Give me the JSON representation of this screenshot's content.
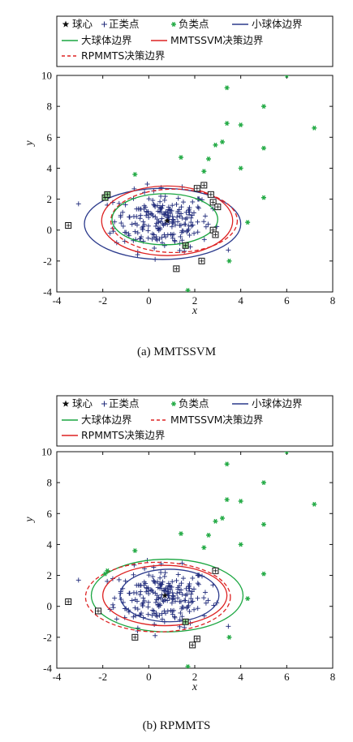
{
  "chart_data": [
    {
      "type": "scatter",
      "caption": "(a) MMTSSVM",
      "xlabel": "x",
      "ylabel": "y",
      "xlim": [
        -4,
        8
      ],
      "ylim": [
        -4,
        10
      ],
      "xticks": [
        "-4",
        "-2",
        "0",
        "2",
        "4",
        "6",
        "8"
      ],
      "yticks": [
        "-4",
        "-2",
        "0",
        "2",
        "4",
        "6",
        "8",
        "10"
      ],
      "legend": [
        {
          "label": "球心",
          "symbol": "star",
          "color": "#111111"
        },
        {
          "label": "正类点",
          "symbol": "plus",
          "color": "#1f2a7a"
        },
        {
          "label": "负类点",
          "symbol": "asterisk",
          "color": "#22aa44"
        },
        {
          "label": "小球体边界",
          "symbol": "solid",
          "color": "#2b3a8c"
        },
        {
          "label": "大球体边界",
          "symbol": "solid",
          "color": "#1aa640"
        },
        {
          "label": "MMTSSVM决策边界",
          "symbol": "solid",
          "color": "#dd2222"
        },
        {
          "label": "RPMMTS决策边界",
          "symbol": "dashed",
          "color": "#dd2222"
        }
      ],
      "boundaries": [
        {
          "name": "小球体边界",
          "cx": 0.6,
          "cy": 0.4,
          "rx": 3.4,
          "ry": 2.3,
          "color": "#2b3a8c",
          "dash": false
        },
        {
          "name": "MMTSSVM决策边界",
          "cx": 0.8,
          "cy": 0.6,
          "rx": 2.85,
          "ry": 2.25,
          "color": "#dd2222",
          "dash": false
        },
        {
          "name": "RPMMTS决策边界",
          "cx": 1.1,
          "cy": 0.6,
          "rx": 2.75,
          "ry": 2.05,
          "color": "#dd2222",
          "dash": true
        },
        {
          "name": "大球体边界",
          "cx": 0.7,
          "cy": 0.7,
          "rx": 2.3,
          "ry": 1.65,
          "color": "#1aa640",
          "dash": false
        }
      ],
      "center": [
        0.8,
        0.6
      ],
      "negative_points": [
        [
          6.0,
          10.0
        ],
        [
          3.4,
          9.2
        ],
        [
          5.0,
          8.0
        ],
        [
          3.4,
          6.9
        ],
        [
          4.0,
          6.8
        ],
        [
          7.2,
          6.6
        ],
        [
          2.9,
          5.5
        ],
        [
          3.2,
          5.7
        ],
        [
          2.6,
          4.6
        ],
        [
          1.4,
          4.7
        ],
        [
          5.0,
          5.3
        ],
        [
          4.0,
          4.0
        ],
        [
          2.4,
          3.8
        ],
        [
          -0.6,
          3.6
        ],
        [
          5.0,
          2.1
        ],
        [
          4.3,
          0.5
        ],
        [
          3.5,
          -2.0
        ],
        [
          1.7,
          -3.9
        ],
        [
          -1.8,
          2.3
        ],
        [
          -1.9,
          2.1
        ]
      ],
      "support_points": [
        [
          -3.5,
          0.3
        ],
        [
          -1.9,
          2.1
        ],
        [
          -1.8,
          2.3
        ],
        [
          2.1,
          2.7
        ],
        [
          2.4,
          2.9
        ],
        [
          2.7,
          2.3
        ],
        [
          2.8,
          1.8
        ],
        [
          3.0,
          1.5
        ],
        [
          2.8,
          0.0
        ],
        [
          2.9,
          -0.3
        ],
        [
          2.3,
          -2.0
        ],
        [
          1.6,
          -1.0
        ],
        [
          1.2,
          -2.5
        ]
      ],
      "support_filled": [
        false,
        true,
        true,
        false,
        false,
        false,
        false,
        false,
        false,
        false,
        false,
        true,
        false
      ]
    },
    {
      "type": "scatter",
      "caption": "(b) RPMMTS",
      "xlabel": "x",
      "ylabel": "y",
      "xlim": [
        -4,
        8
      ],
      "ylim": [
        -4,
        10
      ],
      "xticks": [
        "-4",
        "-2",
        "0",
        "2",
        "4",
        "6",
        "8"
      ],
      "yticks": [
        "-4",
        "-2",
        "0",
        "2",
        "4",
        "6",
        "8",
        "10"
      ],
      "legend": [
        {
          "label": "球心",
          "symbol": "star",
          "color": "#111111"
        },
        {
          "label": "正类点",
          "symbol": "plus",
          "color": "#1f2a7a"
        },
        {
          "label": "负类点",
          "symbol": "asterisk",
          "color": "#22aa44"
        },
        {
          "label": "小球体边界",
          "symbol": "solid",
          "color": "#2b3a8c"
        },
        {
          "label": "大球体边界",
          "symbol": "solid",
          "color": "#1aa640"
        },
        {
          "label": "MMTSSVM决策边界",
          "symbol": "dashed",
          "color": "#dd2222"
        },
        {
          "label": "RPMMTS决策边界",
          "symbol": "solid",
          "color": "#dd2222"
        }
      ],
      "boundaries": [
        {
          "name": "大球体边界",
          "cx": 0.8,
          "cy": 0.7,
          "rx": 3.3,
          "ry": 2.35,
          "color": "#1aa640",
          "dash": false
        },
        {
          "name": "MMTSSVM决策边界",
          "cx": 0.4,
          "cy": 0.6,
          "rx": 3.15,
          "ry": 2.25,
          "color": "#dd2222",
          "dash": true
        },
        {
          "name": "RPMMTS决策边界",
          "cx": 0.7,
          "cy": 0.7,
          "rx": 2.7,
          "ry": 1.95,
          "color": "#dd2222",
          "dash": false
        },
        {
          "name": "小球体边界",
          "cx": 0.9,
          "cy": 0.7,
          "rx": 2.15,
          "ry": 1.7,
          "color": "#2b3a8c",
          "dash": false
        }
      ],
      "center": [
        0.7,
        0.7
      ],
      "negative_points": [
        [
          6.0,
          10.0
        ],
        [
          3.4,
          9.2
        ],
        [
          5.0,
          8.0
        ],
        [
          3.4,
          6.9
        ],
        [
          4.0,
          6.8
        ],
        [
          7.2,
          6.6
        ],
        [
          2.9,
          5.5
        ],
        [
          3.2,
          5.7
        ],
        [
          2.6,
          4.6
        ],
        [
          1.4,
          4.7
        ],
        [
          5.0,
          5.3
        ],
        [
          4.0,
          4.0
        ],
        [
          2.4,
          3.8
        ],
        [
          -0.6,
          3.6
        ],
        [
          5.0,
          2.1
        ],
        [
          4.3,
          0.5
        ],
        [
          3.5,
          -2.0
        ],
        [
          1.7,
          -3.9
        ],
        [
          -1.8,
          2.3
        ],
        [
          -1.9,
          2.1
        ]
      ],
      "support_points": [
        [
          -3.5,
          0.3
        ],
        [
          -2.2,
          -0.3
        ],
        [
          -0.6,
          -2.0
        ],
        [
          2.9,
          2.3
        ],
        [
          1.6,
          -1.0
        ],
        [
          2.1,
          -2.1
        ],
        [
          1.9,
          -2.5
        ]
      ],
      "support_filled": [
        false,
        false,
        false,
        false,
        true,
        false,
        false
      ]
    }
  ],
  "positive_seed": 12345
}
